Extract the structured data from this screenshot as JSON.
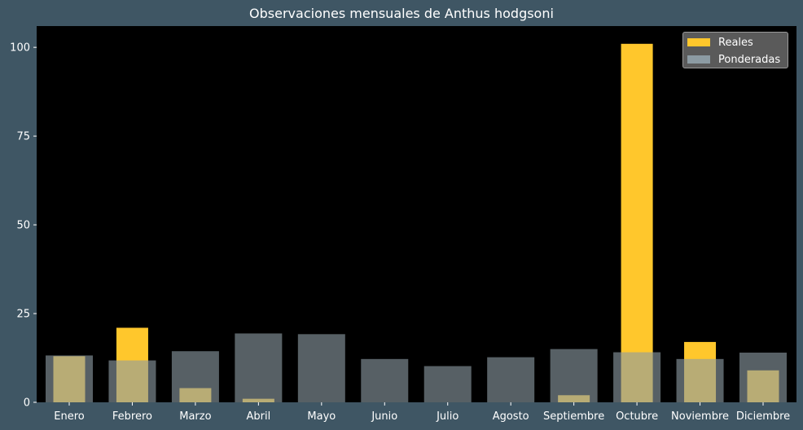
{
  "chart_data": {
    "type": "bar",
    "title": "Observaciones mensuales de Anthus hodgsoni",
    "categories": [
      "Enero",
      "Febrero",
      "Marzo",
      "Abril",
      "Mayo",
      "Junio",
      "Julio",
      "Agosto",
      "Septiembre",
      "Octubre",
      "Noviembre",
      "Diciembre"
    ],
    "series": [
      {
        "name": "Reales",
        "color": "#ffc72c",
        "values": [
          13,
          21,
          4,
          1,
          0,
          0,
          0,
          0,
          2,
          101,
          17,
          9
        ]
      },
      {
        "name": "Ponderadas",
        "color": "#8c9ba3",
        "values": [
          13.2,
          11.8,
          14.4,
          19.4,
          19.2,
          12.2,
          10.2,
          12.7,
          15.0,
          14.1,
          12.2,
          14.0
        ]
      }
    ],
    "yticks": [
      0,
      25,
      50,
      75,
      100
    ],
    "ylim": [
      0,
      106
    ],
    "grid": false,
    "legend_position": "top-right",
    "plot_background": "#000000",
    "figure_background": "#3f5664"
  }
}
